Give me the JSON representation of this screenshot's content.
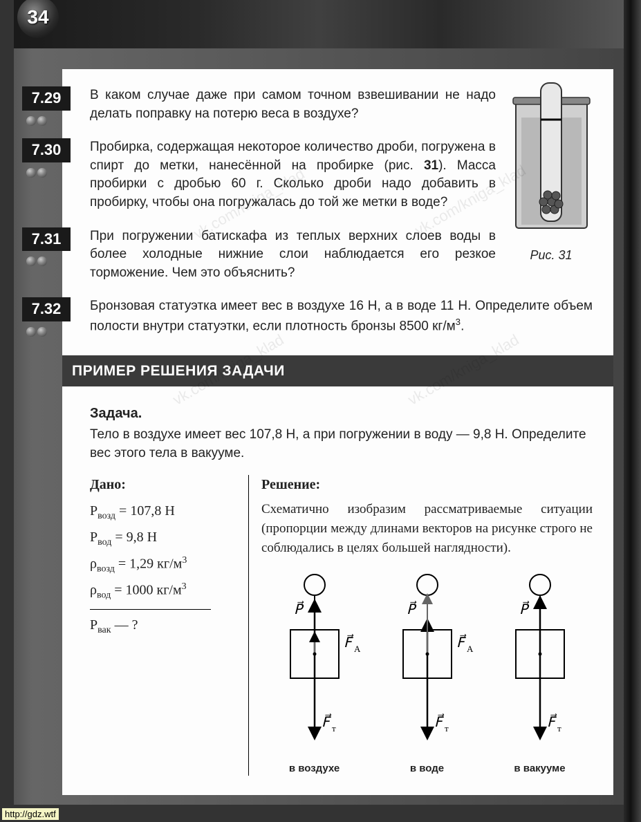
{
  "page_number": "34",
  "problems": [
    {
      "id": "7.29",
      "difficulty": 2,
      "text": "В каком случае даже при самом точном взвешивании не надо делать поправку на потерю веса в воздухе?"
    },
    {
      "id": "7.30",
      "difficulty": 2,
      "text_html": "Пробирка, содержащая некоторое количество дроби, погружена в спирт до метки, нанесённой на пробирке (рис. <b>31</b>). Масса пробирки с дробью 60 г. Сколько дроби надо добавить в пробирку, чтобы она погружалась до той же метки в воде?"
    },
    {
      "id": "7.31",
      "difficulty": 2,
      "text": "При погружении батискафа из теплых верхних слоев воды в более холодные нижние слои наблюдается его резкое торможение. Чем это объяснить?"
    },
    {
      "id": "7.32",
      "difficulty": 2,
      "text_html": "Бронзовая статуэтка имеет вес в воздухе 16 Н, а в воде 11 Н. Определите объем полости внутри статуэтки, если плотность бронзы 8500 кг/м<sup>3</sup>."
    }
  ],
  "figure": {
    "caption": "Рис. 31"
  },
  "section_header": "ПРИМЕР РЕШЕНИЯ ЗАДАЧИ",
  "example": {
    "title": "Задача.",
    "problem": "Тело в воздухе имеет вес 107,8 Н, а при погружении в воду — 9,8 Н. Определите вес этого тела в вакууме.",
    "given_header": "Дано:",
    "given": [
      "P<sub>возд</sub> = 107,8 Н",
      "P<sub>вод</sub> = 9,8 Н",
      "ρ<sub>возд</sub> = 1,29 кг/м<sup>3</sup>",
      "ρ<sub>вод</sub> = 1000 кг/м<sup>3</sup>"
    ],
    "find": "P<sub>вак</sub> — ?",
    "solution_header": "Решение:",
    "solution_text": "Схематично изобразим рассматриваемые ситуации (пропорции между длинами векторов на рисунке строго не соблюдались в целях большей наглядности).",
    "diagram_labels": [
      "в воздухе",
      "в воде",
      "в вакууме"
    ],
    "force_labels": {
      "P": "P",
      "FA": "F",
      "FA_sub": "А",
      "FT": "F",
      "FT_sub": "т"
    }
  },
  "watermarks": [
    "vk.com/kniga_klad",
    "vk.com/kniga_klad",
    "vk.com/kniga_klad",
    "vk.com/kniga_klad"
  ],
  "footer_url": "http://gdz.wtf",
  "colors": {
    "page_bg": "#fdfdfd",
    "frame_bg": "#555",
    "header_dark": "#1a1a1a",
    "text": "#222",
    "section_bar": "#3a3a3a"
  }
}
